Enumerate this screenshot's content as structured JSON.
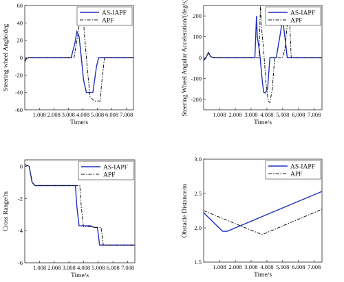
{
  "chart_data": [
    {
      "type": "line",
      "xlabel": "Time/s",
      "ylabel": "Steering wheel Angle/deg",
      "xlim": [
        0,
        7.5
      ],
      "ylim": [
        -60,
        60
      ],
      "x_ticks": [
        "1.008",
        "2.008",
        "3.008",
        "4.008",
        "5.008",
        "6.008",
        "7.008"
      ],
      "x_tick_values": [
        1.008,
        2.008,
        3.008,
        4.008,
        5.008,
        6.008,
        7.008
      ],
      "y_ticks": [
        "-60",
        "-40",
        "-20",
        "0",
        "20",
        "40",
        "60"
      ],
      "y_tick_values": [
        -60,
        -40,
        -20,
        0,
        20,
        40,
        60
      ],
      "legend_position": "top-right",
      "series": [
        {
          "name": "AS-IAPF",
          "color": "#1f2fbf",
          "style": "solid",
          "x": [
            0,
            0.1,
            0.25,
            0.4,
            3.2,
            3.45,
            3.6,
            3.75,
            3.9,
            4.05,
            4.25,
            4.7,
            4.8,
            4.95,
            5.1,
            7.5
          ],
          "y": [
            -5,
            -1.5,
            0,
            0,
            0,
            16,
            30,
            24,
            0,
            -25,
            -40,
            -40,
            -28,
            -10,
            0,
            0
          ]
        },
        {
          "name": "APF",
          "color": "#111111",
          "style": "dashdot",
          "x": [
            0,
            0.1,
            0.25,
            0.4,
            3.4,
            3.65,
            3.85,
            4.05,
            4.25,
            4.5,
            4.8,
            5.2,
            5.3,
            5.5,
            7.5
          ],
          "y": [
            -4,
            -1,
            0,
            0,
            0,
            25,
            50,
            42,
            0,
            -45,
            -50,
            -50,
            -30,
            0,
            0
          ]
        }
      ]
    },
    {
      "type": "line",
      "xlabel": "Time/s",
      "ylabel": "Steering Wheel Angular Acceleration/(deg/s)",
      "xlim": [
        0,
        7.5
      ],
      "ylim": [
        -250,
        250
      ],
      "x_ticks": [
        "1.008",
        "2.008",
        "3.008",
        "4.008",
        "5.008",
        "6.008",
        "7.008"
      ],
      "x_tick_values": [
        1.008,
        2.008,
        3.008,
        4.008,
        5.008,
        6.008,
        7.008
      ],
      "y_ticks": [
        "-200",
        "-100",
        "0",
        "100",
        "200"
      ],
      "y_tick_values": [
        -200,
        -100,
        0,
        100,
        200
      ],
      "legend_position": "top-right",
      "series": [
        {
          "name": "AS-IAPF",
          "color": "#1f2fbf",
          "style": "solid",
          "x": [
            0,
            0.15,
            0.3,
            0.45,
            0.6,
            3.25,
            3.35,
            3.4,
            3.55,
            3.7,
            3.8,
            3.9,
            4.05,
            4.2,
            4.45,
            4.6,
            4.85,
            5.0,
            5.15,
            5.3,
            5.45,
            7.5
          ],
          "y": [
            -15,
            0,
            25,
            5,
            0,
            0,
            200,
            100,
            25,
            -100,
            -165,
            -170,
            -150,
            0,
            0,
            0,
            110,
            185,
            100,
            0,
            0,
            0
          ]
        },
        {
          "name": "APF",
          "color": "#111111",
          "style": "dashdot",
          "x": [
            0,
            0.15,
            0.3,
            0.45,
            0.6,
            3.5,
            3.6,
            3.65,
            3.8,
            3.95,
            4.1,
            4.2,
            4.35,
            4.5,
            5.0,
            5.15,
            5.35,
            5.45,
            5.55,
            5.65,
            5.75,
            7.5
          ],
          "y": [
            -10,
            0,
            22,
            5,
            0,
            0,
            250,
            160,
            40,
            -120,
            -210,
            -215,
            -150,
            0,
            0,
            40,
            200,
            170,
            0,
            0,
            0,
            0
          ]
        }
      ]
    },
    {
      "type": "line",
      "xlabel": "Time/s",
      "ylabel": "Cross Range/m",
      "xlim": [
        0,
        7.5
      ],
      "ylim": [
        -6,
        0.4
      ],
      "x_ticks": [
        "1.008",
        "2.008",
        "3.008",
        "4.008",
        "5.008",
        "6.008",
        "7.008"
      ],
      "x_tick_values": [
        1.008,
        2.008,
        3.008,
        4.008,
        5.008,
        6.008,
        7.008
      ],
      "y_ticks": [
        "-6",
        "-4",
        "-2",
        "0"
      ],
      "y_tick_values": [
        -6,
        -4,
        -2,
        0
      ],
      "legend_position": "top-right",
      "series": [
        {
          "name": "AS-IAPF",
          "color": "#1f2fbf",
          "style": "solid",
          "x": [
            0,
            0.3,
            0.5,
            0.7,
            1.0,
            2.0,
            3.45,
            3.55,
            3.7,
            4.5,
            4.7,
            4.95,
            5.1,
            7.5
          ],
          "y": [
            0.1,
            0,
            -1.0,
            -1.2,
            -1.2,
            -1.2,
            -1.2,
            -2.5,
            -3.7,
            -3.7,
            -3.8,
            -3.8,
            -4.9,
            -4.9
          ]
        },
        {
          "name": "APF",
          "color": "#111111",
          "style": "dashdot",
          "x": [
            0,
            0.3,
            0.5,
            0.7,
            1.0,
            2.0,
            3.75,
            3.85,
            4.0,
            4.6,
            4.8,
            5.2,
            5.35,
            7.5
          ],
          "y": [
            0.1,
            0,
            -1.0,
            -1.2,
            -1.2,
            -1.2,
            -1.2,
            -2.5,
            -3.75,
            -3.75,
            -3.8,
            -3.8,
            -4.9,
            -4.9
          ]
        }
      ]
    },
    {
      "type": "line",
      "xlabel": "Time/s",
      "ylabel": "Obstacle Distance/m",
      "xlim": [
        0,
        7.5
      ],
      "ylim": [
        1.5,
        3.0
      ],
      "x_ticks": [
        "1.008",
        "2.008",
        "3.008",
        "4.008",
        "5.008",
        "6.008",
        "7.008"
      ],
      "x_tick_values": [
        1.008,
        2.008,
        3.008,
        4.008,
        5.008,
        6.008,
        7.008
      ],
      "y_ticks": [
        "1.5",
        "2.0",
        "2.5",
        "3.0"
      ],
      "y_tick_values": [
        1.5,
        2.0,
        2.5,
        3.0
      ],
      "legend_position": "top-right",
      "series": [
        {
          "name": "AS-IAPF",
          "color": "#1f2fbf",
          "style": "solid",
          "x": [
            0,
            1.2,
            1.5,
            7.5
          ],
          "y": [
            2.22,
            1.95,
            1.95,
            2.53
          ]
        },
        {
          "name": "APF",
          "color": "#111111",
          "style": "dashdot",
          "x": [
            0,
            3.7,
            7.5
          ],
          "y": [
            2.25,
            1.9,
            2.27
          ]
        }
      ]
    }
  ]
}
